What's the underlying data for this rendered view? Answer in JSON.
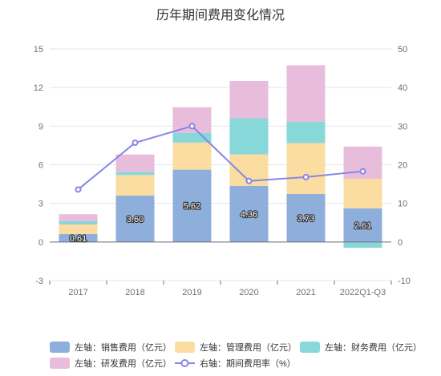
{
  "chart_data": {
    "type": "bar",
    "title": "历年期间费用变化情况",
    "categories": [
      "2017",
      "2018",
      "2019",
      "2020",
      "2021",
      "2022Q1-Q3"
    ],
    "ylim_left": [
      -3,
      15
    ],
    "yticks_left": [
      -3,
      0,
      3,
      6,
      9,
      12,
      15
    ],
    "ylim_right": [
      -10,
      50
    ],
    "yticks_right": [
      -10,
      0,
      10,
      20,
      30,
      40,
      50
    ],
    "grid": true,
    "legend_position": "bottom",
    "series": [
      {
        "name": "左轴：销售费用（亿元）",
        "axis": "left",
        "kind": "stacked-bar",
        "color": "#8eaedc",
        "values": [
          0.61,
          3.6,
          5.62,
          4.36,
          3.73,
          2.61
        ],
        "show_labels": true
      },
      {
        "name": "左轴：管理费用（亿元）",
        "axis": "left",
        "kind": "stacked-bar",
        "color": "#fbdca1",
        "values": [
          0.75,
          1.6,
          2.1,
          2.45,
          3.95,
          2.3
        ]
      },
      {
        "name": "左轴：财务费用（亿元）",
        "axis": "left",
        "kind": "stacked-bar",
        "color": "#88d8d9",
        "values": [
          0.25,
          0.25,
          0.75,
          2.8,
          1.65,
          -0.45
        ]
      },
      {
        "name": "左轴：研发费用（亿元）",
        "axis": "left",
        "kind": "stacked-bar",
        "color": "#e8bddb",
        "values": [
          0.55,
          1.35,
          2.0,
          2.9,
          4.4,
          2.5
        ]
      },
      {
        "name": "右轴：期间费用率（%）",
        "axis": "right",
        "kind": "line",
        "color": "#8785e8",
        "values": [
          13.6,
          25.7,
          30.0,
          15.8,
          16.8,
          18.3
        ]
      }
    ]
  }
}
